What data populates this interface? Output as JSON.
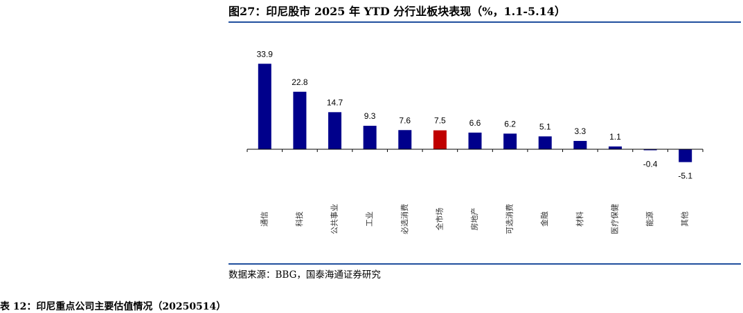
{
  "figure": {
    "title": "图27：印尼股市 2025 年 YTD 分行业板块表现（%，1.1-5.14）",
    "source": "数据来源：BBG，国泰海通证券研究",
    "next_caption": "表 12：印尼重点公司主要估值情况（20250514）"
  },
  "colors": {
    "bar": "#00008b",
    "highlight": "#c00000",
    "rule": "#1f4e9d"
  },
  "chart_data": {
    "type": "bar",
    "title": "印尼股市 2025 年 YTD 分行业板块表现（%，1.1-5.14）",
    "xlabel": "",
    "ylabel": "",
    "categories": [
      "通信",
      "科技",
      "公共事业",
      "工业",
      "必选消费",
      "全市场",
      "房地产",
      "可选消费",
      "金融",
      "材料",
      "医疗保健",
      "能源",
      "其他"
    ],
    "values": [
      33.9,
      22.8,
      14.7,
      9.3,
      7.6,
      7.5,
      6.6,
      6.2,
      5.1,
      3.3,
      1.1,
      -0.4,
      -5.1
    ],
    "labels": [
      "33.9",
      "22.8",
      "14.7",
      "9.3",
      "7.6",
      "7.5",
      "6.6",
      "6.2",
      "5.1",
      "3.3",
      "1.1",
      "-0.4",
      "-5.1"
    ],
    "highlight_category": "全市场",
    "ylim": [
      -12,
      38
    ],
    "grid": false,
    "legend": "none"
  }
}
